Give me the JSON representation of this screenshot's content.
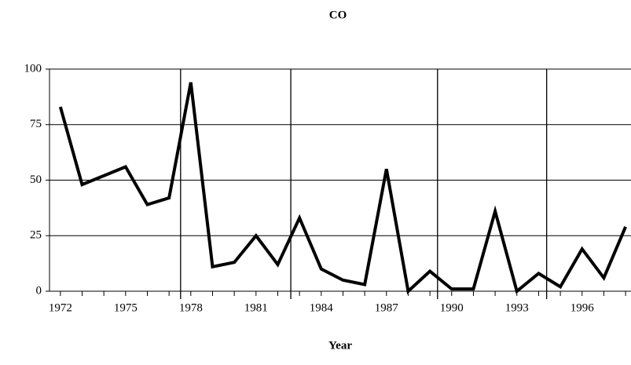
{
  "chart_data": {
    "type": "line",
    "title": "CO",
    "x_label": "Year",
    "x": [
      1972,
      1973,
      1974,
      1975,
      1976,
      1977,
      1978,
      1979,
      1980,
      1981,
      1982,
      1983,
      1984,
      1985,
      1986,
      1987,
      1988,
      1989,
      1990,
      1991,
      1992,
      1993,
      1994,
      1995,
      1996,
      1997,
      1998
    ],
    "series": [
      {
        "name": "CO",
        "color": "#000000",
        "values": [
          83,
          48,
          52,
          56,
          39,
          42,
          94,
          11,
          13,
          25,
          12,
          33,
          10,
          5,
          3,
          55,
          0,
          9,
          1,
          1,
          36,
          0,
          8,
          2,
          19,
          6,
          29
        ]
      }
    ],
    "xlim": [
      1971.5,
      1998.25
    ],
    "xticks": [
      1972,
      1975,
      1978,
      1981,
      1984,
      1987,
      1990,
      1993,
      1996
    ],
    "ylim": [
      0,
      100
    ],
    "yticks": [
      0,
      25,
      50,
      75,
      100
    ],
    "grid": true,
    "reference_lines": [
      1977.53,
      1982.6,
      1989.35,
      1994.37
    ]
  }
}
